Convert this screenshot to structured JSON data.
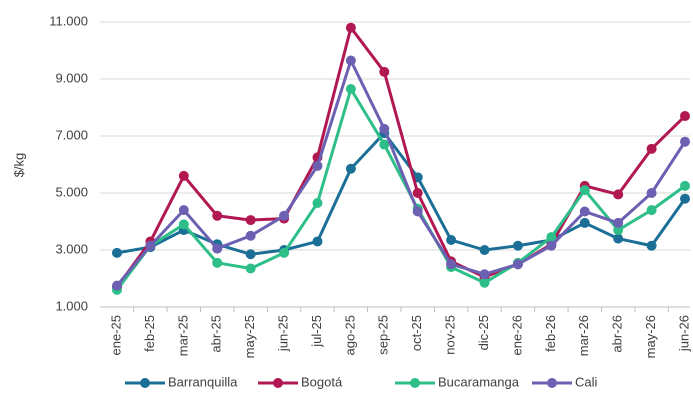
{
  "chart_data": {
    "type": "line",
    "ylabel": "$/kg",
    "categories": [
      "ene-25",
      "feb-25",
      "mar-25",
      "abr-25",
      "may-25",
      "jun-25",
      "jul-25",
      "ago-25",
      "sep-25",
      "oct-25",
      "nov-25",
      "dic-25",
      "ene-26",
      "feb-26",
      "mar-26",
      "abr-26",
      "may-26",
      "jun-26"
    ],
    "series": [
      {
        "name": "Barranquilla",
        "color": "#1b6f97",
        "values": [
          2900,
          3100,
          3700,
          3200,
          2850,
          3000,
          3300,
          5850,
          7100,
          5550,
          3350,
          3000,
          3150,
          3350,
          3950,
          3400,
          3150,
          4800
        ]
      },
      {
        "name": "Bogotá",
        "color": "#b11852",
        "values": [
          1700,
          3300,
          5600,
          4200,
          4050,
          4100,
          6250,
          10800,
          9250,
          5000,
          2600,
          2050,
          2500,
          3200,
          5250,
          4950,
          6550,
          7700
        ]
      },
      {
        "name": "Bucaramanga",
        "color": "#2ebf88",
        "values": [
          1600,
          3150,
          3900,
          2550,
          2350,
          2900,
          4650,
          8650,
          6700,
          4450,
          2400,
          1850,
          2550,
          3450,
          5100,
          3700,
          4400,
          5250
        ]
      },
      {
        "name": "Cali",
        "color": "#6b60b1",
        "values": [
          1750,
          3150,
          4400,
          3050,
          3500,
          4200,
          5950,
          9650,
          7250,
          4350,
          2500,
          2150,
          2500,
          3150,
          4350,
          3950,
          5000,
          6800
        ]
      }
    ],
    "ylim": [
      1000,
      11000
    ],
    "yticks": [
      {
        "value": 1000,
        "label": "1.000"
      },
      {
        "value": 3000,
        "label": "3.000"
      },
      {
        "value": 5000,
        "label": "5.000"
      },
      {
        "value": 7000,
        "label": "7.000"
      },
      {
        "value": 9000,
        "label": "9.000"
      },
      {
        "value": 11000,
        "label": "11.000"
      }
    ],
    "grid": true,
    "legend": "bottom"
  }
}
